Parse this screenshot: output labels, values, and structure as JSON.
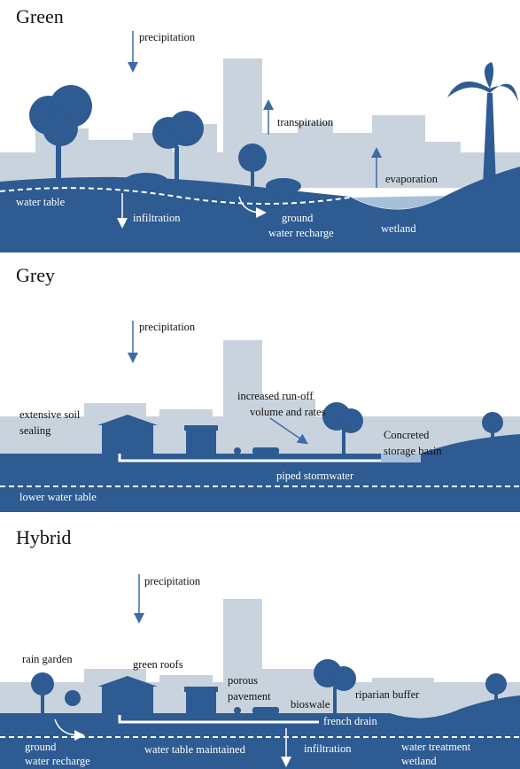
{
  "panels": [
    {
      "title": "Green",
      "labels": [
        [
          "precipitation"
        ],
        [
          "transpiration"
        ],
        [
          "evaporation"
        ],
        [
          "water table"
        ],
        [
          "infiltration"
        ],
        [
          "ground",
          "water recharge"
        ],
        [
          "wetland"
        ]
      ]
    },
    {
      "title": "Grey",
      "labels": [
        [
          "precipitation"
        ],
        [
          "increased run-off",
          "volume and rates"
        ],
        [
          "extensive soil",
          "sealing"
        ],
        [
          "Concreted",
          "storage basin"
        ],
        [
          "piped stormwater"
        ],
        [
          "lower water table"
        ]
      ]
    },
    {
      "title": "Hybrid",
      "labels": [
        [
          "precipitation"
        ],
        [
          "rain garden"
        ],
        [
          "green roofs"
        ],
        [
          "porous",
          "pavement"
        ],
        [
          "bioswale"
        ],
        [
          "riparian buffer"
        ],
        [
          "french drain"
        ],
        [
          "ground",
          "water recharge"
        ],
        [
          "water table maintained"
        ],
        [
          "infiltration"
        ],
        [
          "water treatment",
          "wetland"
        ]
      ]
    }
  ]
}
